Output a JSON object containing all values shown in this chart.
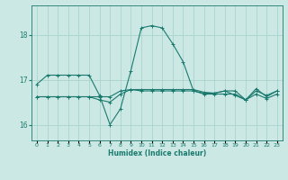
{
  "xlabel": "Humidex (Indice chaleur)",
  "background_color": "#cce8e5",
  "grid_color": "#aad4cf",
  "line_color": "#1a7a6e",
  "x_values": [
    0,
    1,
    2,
    3,
    4,
    5,
    6,
    7,
    8,
    9,
    10,
    11,
    12,
    13,
    14,
    15,
    16,
    17,
    18,
    19,
    20,
    21,
    22,
    23
  ],
  "line1": [
    16.9,
    17.1,
    17.1,
    17.1,
    17.1,
    17.1,
    16.65,
    16.0,
    16.35,
    17.2,
    18.15,
    18.2,
    18.15,
    17.8,
    17.4,
    16.75,
    16.7,
    16.7,
    16.75,
    16.65,
    16.55,
    16.8,
    16.62,
    16.75
  ],
  "line2": [
    16.62,
    16.62,
    16.62,
    16.62,
    16.62,
    16.62,
    16.62,
    16.62,
    16.75,
    16.78,
    16.78,
    16.78,
    16.78,
    16.78,
    16.78,
    16.78,
    16.72,
    16.7,
    16.75,
    16.75,
    16.55,
    16.75,
    16.65,
    16.75
  ],
  "line3": [
    16.62,
    16.62,
    16.62,
    16.62,
    16.62,
    16.62,
    16.55,
    16.5,
    16.68,
    16.78,
    16.75,
    16.75,
    16.75,
    16.75,
    16.75,
    16.75,
    16.68,
    16.68,
    16.68,
    16.68,
    16.55,
    16.68,
    16.58,
    16.68
  ],
  "ylim": [
    15.65,
    18.65
  ],
  "yticks": [
    16,
    17,
    18
  ]
}
